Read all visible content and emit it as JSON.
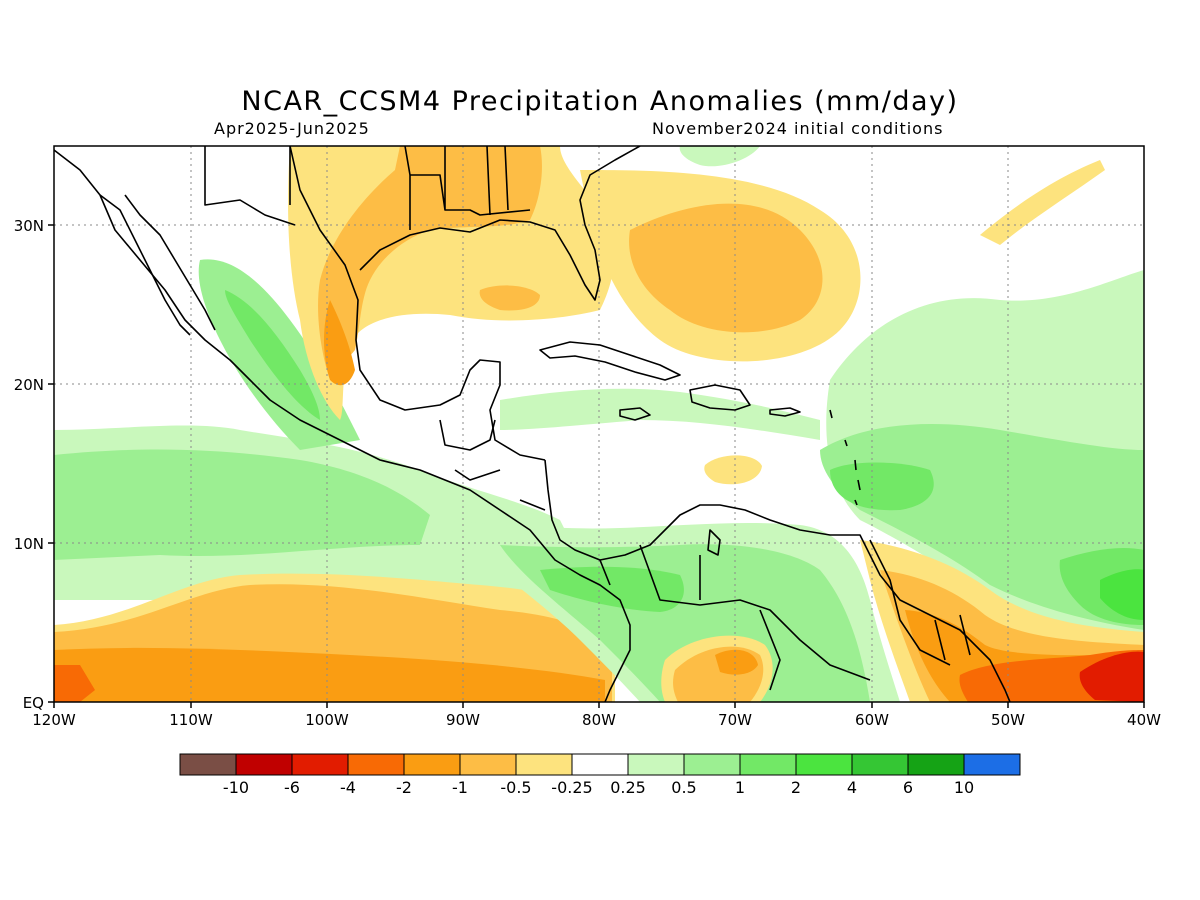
{
  "header": {
    "title": "NCAR_CCSM4 Precipitation Anomalies (mm/day)",
    "period": "Apr2025-Jun2025",
    "init": "November2024 initial conditions"
  },
  "map": {
    "lon_range": [
      -120,
      -40
    ],
    "lat_range": [
      0,
      35
    ],
    "x_ticks": [
      "120W",
      "110W",
      "100W",
      "90W",
      "80W",
      "70W",
      "60W",
      "50W",
      "40W"
    ],
    "y_ticks": [
      "EQ",
      "10N",
      "20N",
      "30N"
    ],
    "gridlines": "dotted",
    "coastlines": true,
    "borders": true
  },
  "colorbar": {
    "colors": [
      "#7a4e45",
      "#c00000",
      "#e21c00",
      "#f86a05",
      "#fa9d12",
      "#fdbd45",
      "#fde37e",
      "#ffffff",
      "#c9f8bc",
      "#9cef92",
      "#72e866",
      "#4be43f",
      "#35c634",
      "#15a315",
      "#1c6ee6"
    ],
    "labels": [
      "-10",
      "-6",
      "-4",
      "-2",
      "-1",
      "-0.5",
      "-0.25",
      "0.25",
      "0.5",
      "1",
      "2",
      "4",
      "6",
      "10"
    ]
  }
}
